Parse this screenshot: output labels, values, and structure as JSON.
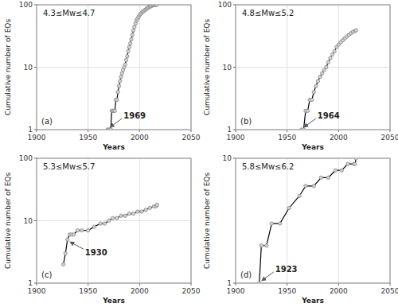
{
  "chart_data": [
    {
      "type": "line",
      "title": "4.3≤Mw≤4.7",
      "xlabel": "Years",
      "ylabel": "Cumulative number of EQs",
      "x": [
        1969,
        1970,
        1971,
        1972,
        1973,
        1974,
        1975,
        1976,
        1977,
        1978,
        1979,
        1980,
        1981,
        1982,
        1983,
        1984,
        1985,
        1986,
        1987,
        1988,
        1989,
        1990,
        1991,
        1992,
        1993,
        1994,
        1995,
        1996,
        1997,
        1998,
        1999,
        2000,
        2001,
        2002,
        2003,
        2004,
        2005,
        2006,
        2007,
        2008,
        2009,
        2010,
        2011,
        2012,
        2013,
        2014,
        2015,
        2016,
        2017
      ],
      "values": [
        1,
        1,
        1,
        1,
        2,
        2,
        2,
        2,
        3,
        3,
        4,
        5,
        6,
        7,
        8,
        9,
        10,
        11,
        13,
        15,
        18,
        21,
        24,
        28,
        33,
        39,
        44,
        50,
        56,
        60,
        64,
        68,
        71,
        74,
        77,
        79,
        82,
        84,
        87,
        89,
        91,
        93,
        95,
        97,
        98,
        99,
        99,
        100,
        100
      ],
      "color": "#000000",
      "marker": "circle",
      "log": "y",
      "grid": true,
      "xlim": [
        1900,
        2050
      ],
      "xticks": [
        1900,
        1950,
        2000,
        2050
      ],
      "ylim": [
        1,
        100
      ],
      "yticks": [
        1,
        10,
        100
      ],
      "annotations": [
        {
          "text": "(a)"
        },
        {
          "text": "1969",
          "x": 1969,
          "y": 1
        }
      ]
    },
    {
      "type": "line",
      "title": "4.8≤Mw≤5.2",
      "xlabel": "Years",
      "ylabel": "Cumulative number of EQs",
      "x": [
        1964,
        1966,
        1968,
        1970,
        1972,
        1974,
        1976,
        1978,
        1980,
        1982,
        1984,
        1986,
        1988,
        1990,
        1992,
        1994,
        1996,
        1998,
        2000,
        2002,
        2004,
        2006,
        2008,
        2010,
        2012,
        2014,
        2016,
        2017
      ],
      "values": [
        1,
        1,
        2,
        2,
        3,
        3,
        4,
        5,
        6,
        7,
        8,
        9,
        10,
        12,
        14,
        16,
        18,
        21,
        23,
        25,
        27,
        29,
        31,
        33,
        35,
        37,
        38,
        39
      ],
      "color": "#000000",
      "marker": "circle",
      "log": "y",
      "grid": true,
      "xlim": [
        1900,
        2050
      ],
      "xticks": [
        1900,
        1950,
        2000,
        2050
      ],
      "ylim": [
        1,
        100
      ],
      "yticks": [
        1,
        10,
        100
      ],
      "annotations": [
        {
          "text": "(b)"
        },
        {
          "text": "1964",
          "x": 1964,
          "y": 1
        }
      ]
    },
    {
      "type": "line",
      "title": "5.3≤Mw≤5.7",
      "xlabel": "Years",
      "ylabel": "Cumulative number of EQs",
      "x": [
        1926,
        1928,
        1930,
        1932,
        1934,
        1936,
        1940,
        1944,
        1950,
        1956,
        1962,
        1966,
        1970,
        1974,
        1978,
        1982,
        1986,
        1990,
        1994,
        1998,
        2002,
        2006,
        2010,
        2014,
        2016,
        2017
      ],
      "values": [
        2,
        3,
        5,
        6,
        6,
        6,
        7,
        7,
        7,
        8,
        9,
        9,
        10,
        11,
        11,
        12,
        12,
        13,
        13,
        14,
        14,
        15,
        16,
        17,
        17,
        18
      ],
      "color": "#000000",
      "marker": "circle",
      "log": "y",
      "grid": true,
      "xlim": [
        1900,
        2050
      ],
      "xticks": [
        1900,
        1950,
        2000,
        2050
      ],
      "ylim": [
        1,
        100
      ],
      "yticks": [
        1,
        10,
        100
      ],
      "annotations": [
        {
          "text": "(c)"
        },
        {
          "text": "1930",
          "x": 1930,
          "y": 5
        }
      ]
    },
    {
      "type": "line",
      "title": "5.8≤Mw≤6.2",
      "xlabel": "Years",
      "ylabel": "Cumulative number of EQs",
      "x": [
        1923,
        1925,
        1930,
        1935,
        1943,
        1952,
        1962,
        1968,
        1976,
        1983,
        1990,
        1997,
        2003,
        2009,
        2015,
        2016,
        2017
      ],
      "values": [
        1,
        2,
        2,
        3,
        3,
        4,
        5,
        6,
        6,
        7,
        7,
        8,
        8,
        9,
        9,
        9,
        10
      ],
      "color": "#000000",
      "marker": "circle",
      "log": "y",
      "grid": true,
      "xlim": [
        1900,
        2050
      ],
      "xticks": [
        1900,
        1950,
        2000,
        2050
      ],
      "ylim": [
        1,
        10
      ],
      "yticks": [
        1,
        10
      ],
      "annotations": [
        {
          "text": "(d)"
        },
        {
          "text": "1923",
          "x": 1923,
          "y": 1
        }
      ]
    }
  ]
}
